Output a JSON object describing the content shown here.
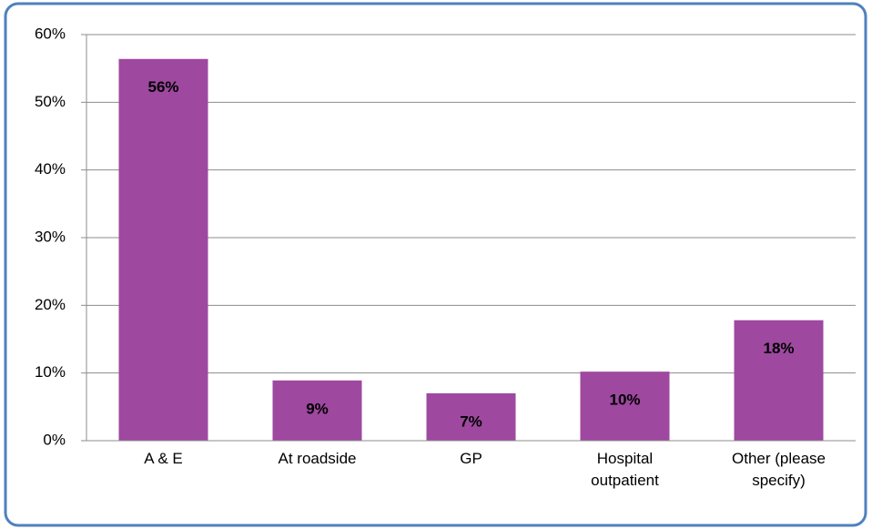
{
  "chart_data": {
    "type": "bar",
    "categories": [
      "A & E",
      "At roadside",
      "GP",
      "Hospital outpatient",
      "Other (please specify)"
    ],
    "values": [
      56.4,
      8.9,
      7.0,
      10.2,
      17.8
    ],
    "value_labels": [
      "56%",
      "9%",
      "7%",
      "10%",
      "18%"
    ],
    "color": "#9e48a0",
    "ylim": [
      0,
      60
    ],
    "yticks": [
      {
        "value": 0,
        "label": "0%"
      },
      {
        "value": 10,
        "label": "10%"
      },
      {
        "value": 20,
        "label": "20%"
      },
      {
        "value": 30,
        "label": "30%"
      },
      {
        "value": 40,
        "label": "40%"
      },
      {
        "value": 50,
        "label": "50%"
      },
      {
        "value": 60,
        "label": "60%"
      }
    ],
    "grid": true
  }
}
